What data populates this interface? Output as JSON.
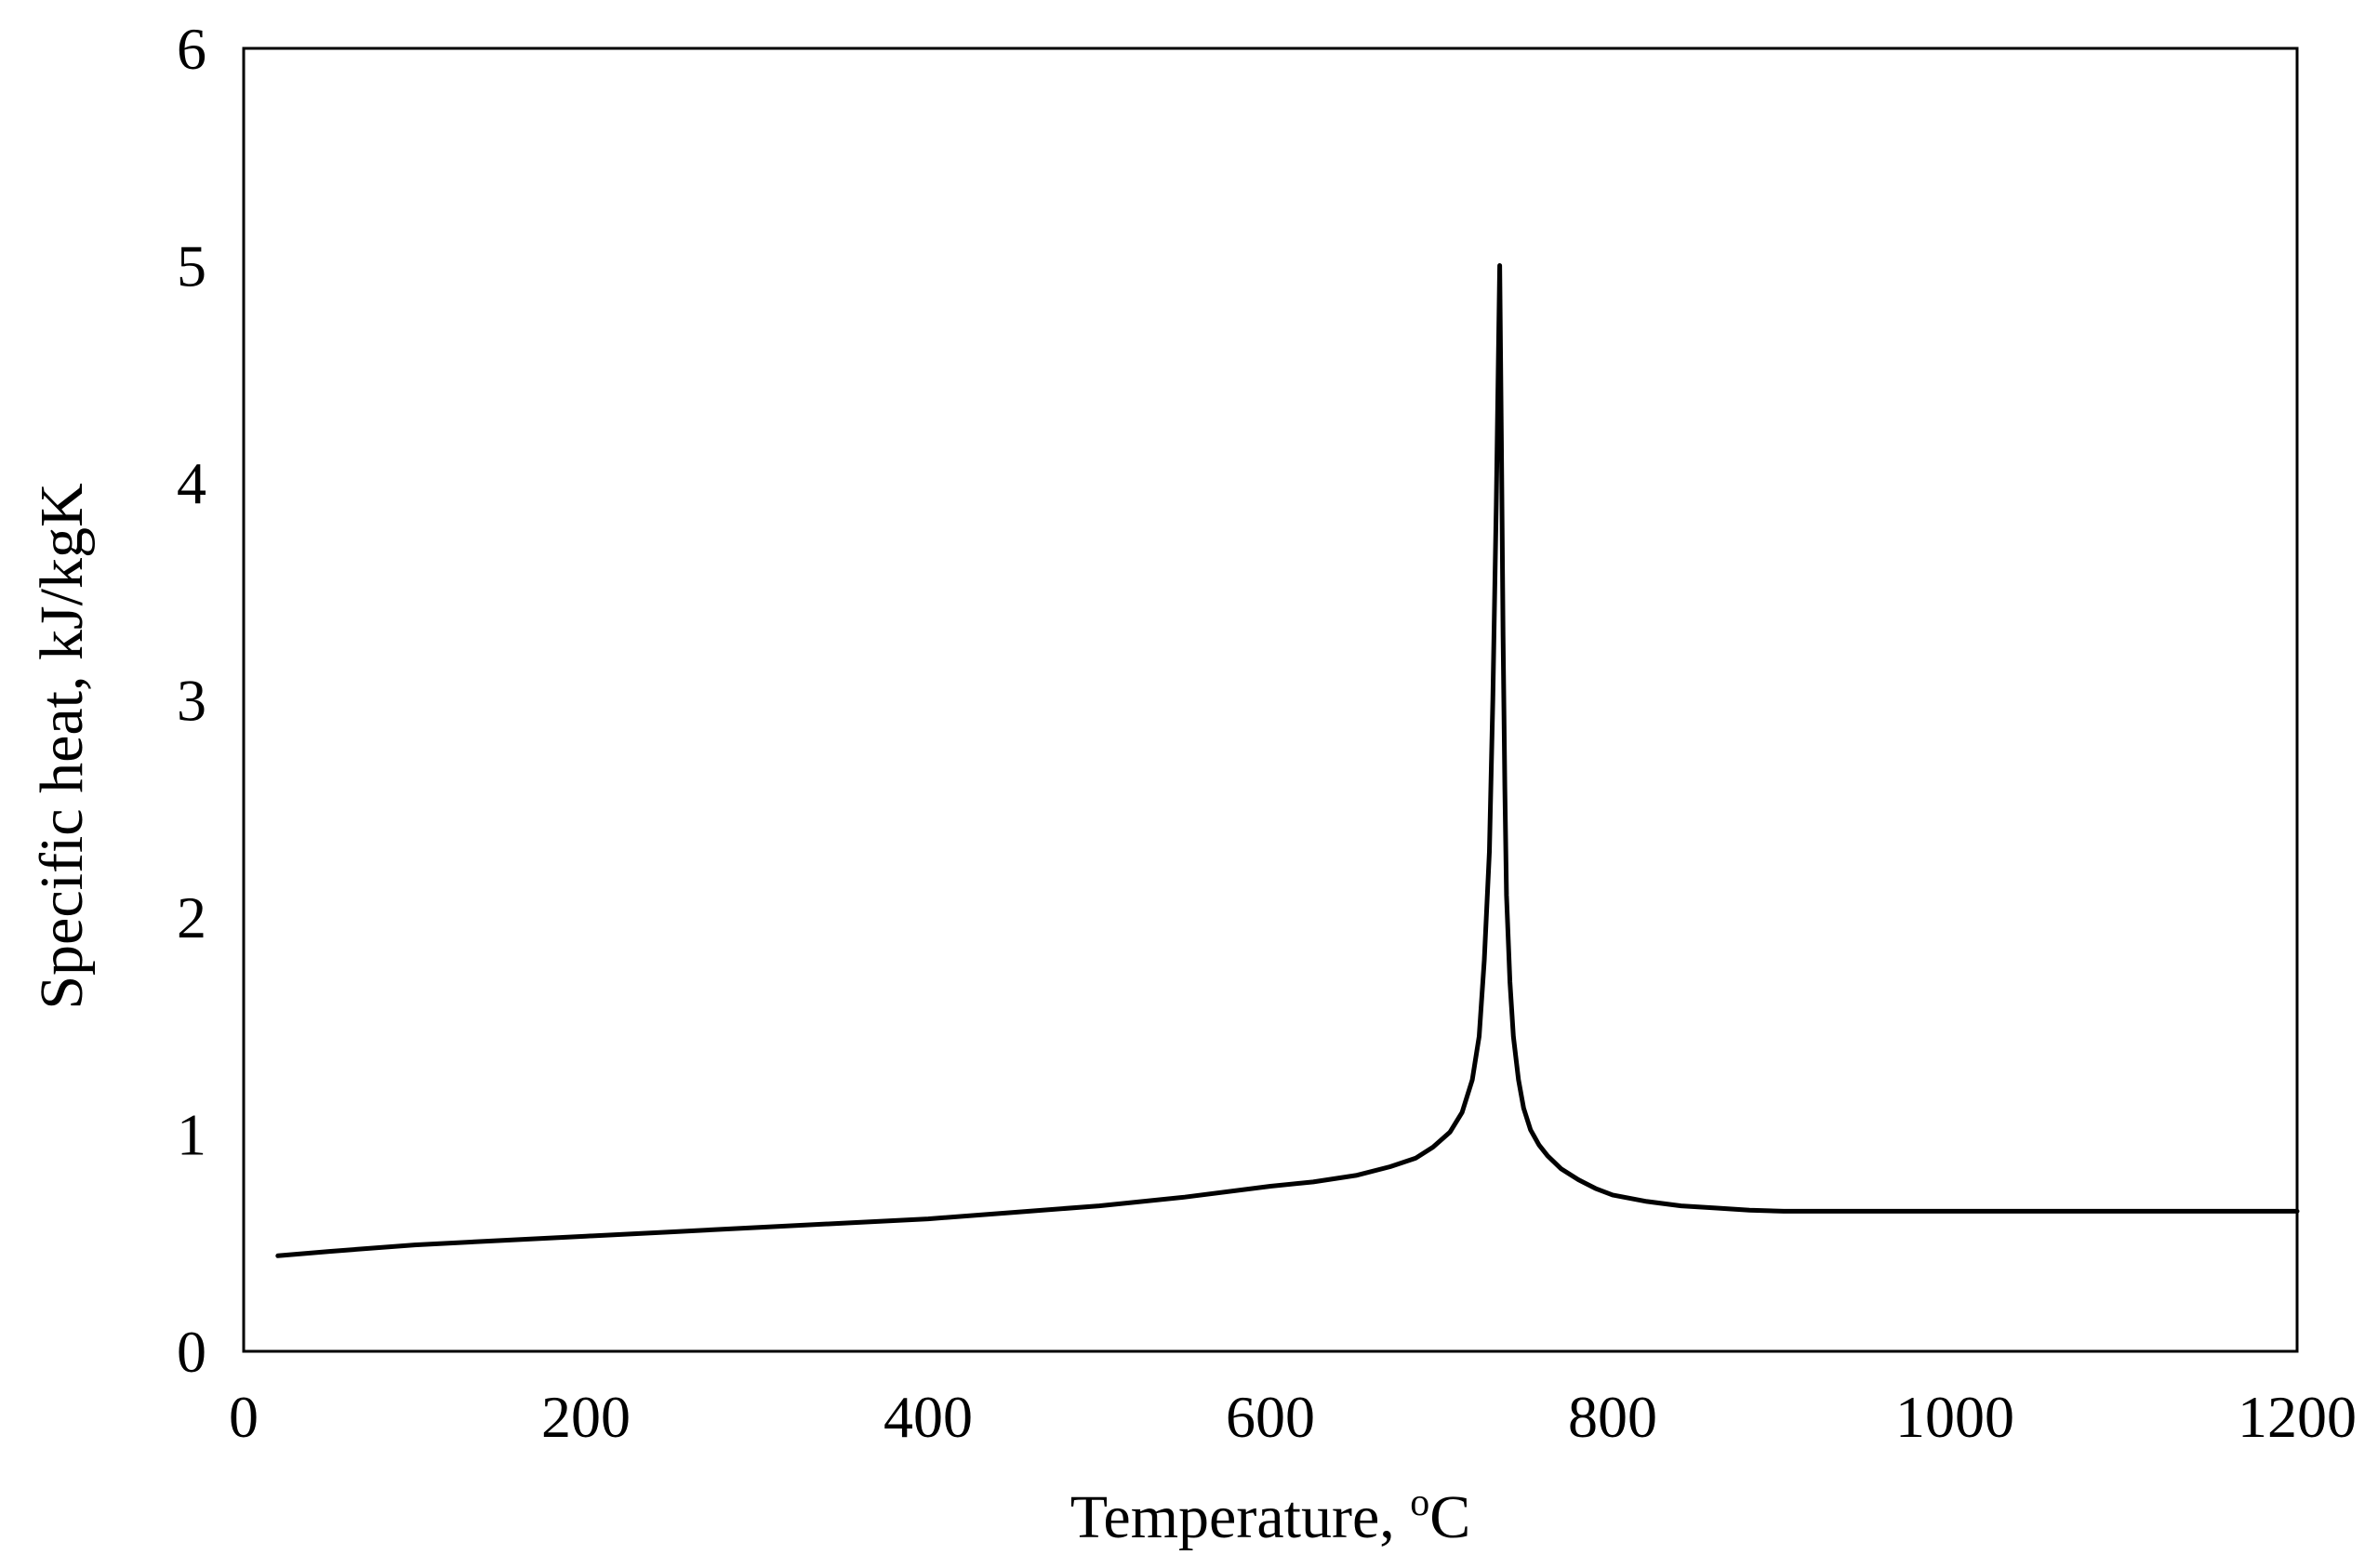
{
  "chart_data": {
    "type": "line",
    "title": "",
    "xlabel": "Temperature, ",
    "xlabel_superscript": "o",
    "xlabel_unit": "C",
    "ylabel": "Specific heat, kJ/kgK",
    "xlim": [
      0,
      1200
    ],
    "ylim": [
      0,
      6
    ],
    "x_ticks": [
      0,
      200,
      400,
      600,
      800,
      1000,
      1200
    ],
    "x_tick_labels": [
      "0",
      "200",
      "400",
      "600",
      "800",
      "1000",
      "1200"
    ],
    "y_ticks": [
      0,
      1,
      2,
      3,
      4,
      5,
      6
    ],
    "y_tick_labels": [
      "0",
      "1",
      "2",
      "3",
      "4",
      "5",
      "6"
    ],
    "grid": false,
    "legend": "none",
    "line_color": "#000000",
    "series": [
      {
        "x": [
          20,
          50,
          100,
          150,
          200,
          250,
          300,
          350,
          400,
          450,
          500,
          550,
          600,
          625,
          650,
          670,
          685,
          695,
          705,
          712,
          718,
          722,
          725,
          728,
          730,
          732,
          734,
          735,
          736,
          737,
          738,
          740,
          742,
          745,
          748,
          752,
          757,
          762,
          770,
          780,
          790,
          800,
          820,
          840,
          860,
          880,
          900,
          950,
          1000,
          1100,
          1200
        ],
        "y": [
          0.44,
          0.46,
          0.49,
          0.51,
          0.53,
          0.55,
          0.57,
          0.59,
          0.61,
          0.64,
          0.67,
          0.71,
          0.76,
          0.78,
          0.81,
          0.85,
          0.89,
          0.94,
          1.01,
          1.1,
          1.25,
          1.45,
          1.8,
          2.3,
          3.0,
          3.9,
          5.0,
          4.2,
          3.3,
          2.6,
          2.1,
          1.7,
          1.45,
          1.25,
          1.12,
          1.02,
          0.95,
          0.9,
          0.84,
          0.79,
          0.75,
          0.72,
          0.69,
          0.67,
          0.66,
          0.65,
          0.645,
          0.645,
          0.645,
          0.645,
          0.645
        ]
      }
    ]
  }
}
